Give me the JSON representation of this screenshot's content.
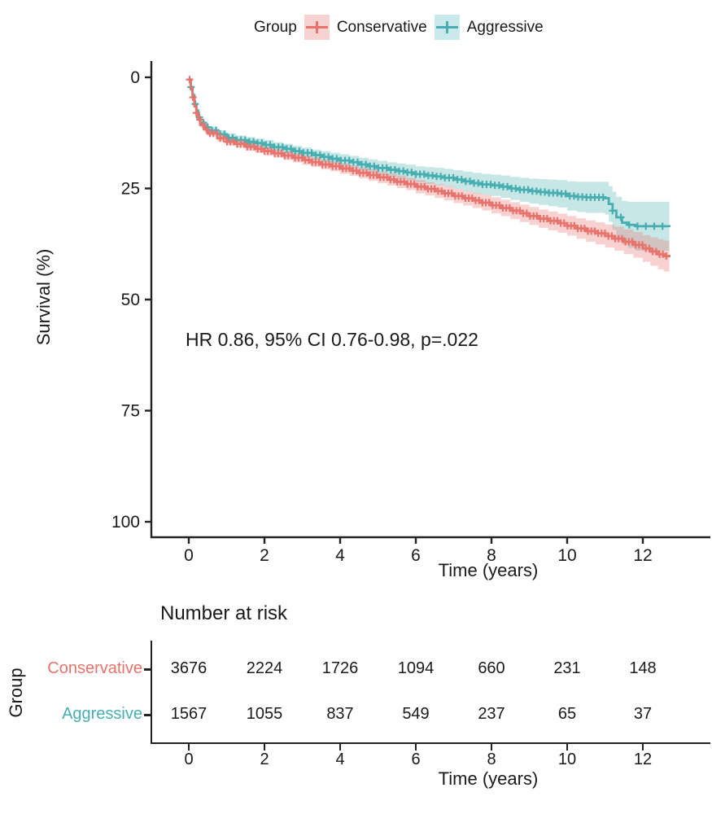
{
  "accent_colors": {
    "conservative": "#E8736C",
    "conservative_band": "rgba(232,115,108,0.32)",
    "conservative_key_fill": "#F6D2D0",
    "aggressive": "#47AEB1",
    "aggressive_band": "rgba(71,174,177,0.30)",
    "aggressive_key_fill": "#C9E9EA",
    "axis": "#222222"
  },
  "legend": {
    "title": "Group",
    "items": [
      {
        "label": "Conservative"
      },
      {
        "label": "Aggressive"
      }
    ]
  },
  "main_plot": {
    "ylabel": "Survival (%)",
    "xlabel": "Time (years)",
    "annotation": "HR 0.86, 95% CI 0.76-0.98, p=.022",
    "ytick_labels": [
      "100",
      "75",
      "50",
      "25",
      "0"
    ],
    "xtick_labels": [
      "0",
      "2",
      "4",
      "6",
      "8",
      "10",
      "12"
    ]
  },
  "risk_table": {
    "title": "Number at risk",
    "group_axis_label": "Group",
    "xlabel": "Time (years)",
    "xtick_labels": [
      "0",
      "2",
      "4",
      "6",
      "8",
      "10",
      "12"
    ],
    "rows": [
      {
        "label": "Conservative",
        "counts": [
          "3676",
          "2224",
          "1726",
          "1094",
          "660",
          "231",
          "148"
        ]
      },
      {
        "label": "Aggressive",
        "counts": [
          "1567",
          "1055",
          "837",
          "549",
          "237",
          "65",
          "37"
        ]
      }
    ]
  },
  "chart_data": {
    "type": "line",
    "subtype": "kaplan-meier-step",
    "title": "",
    "xlabel": "Time (years)",
    "ylabel": "Survival (%)",
    "xlim": [
      0,
      12.8
    ],
    "ylim": [
      0,
      100
    ],
    "xticks": [
      0,
      2,
      4,
      6,
      8,
      10,
      12
    ],
    "yticks": [
      0,
      25,
      50,
      75,
      100
    ],
    "grid": false,
    "legend_position": "top",
    "annotation": "HR 0.86, 95% CI 0.76-0.98, p=.022",
    "series": [
      {
        "name": "Aggressive",
        "color": "#47AEB1",
        "band_color": "rgba(71,174,177,0.30)",
        "points_t_surv_cihalf": [
          [
            0,
            99.5,
            0.5
          ],
          [
            0.05,
            97.8,
            0.6
          ],
          [
            0.1,
            96,
            0.6
          ],
          [
            0.15,
            94,
            0.6
          ],
          [
            0.2,
            92.5,
            0.7
          ],
          [
            0.25,
            91,
            0.7
          ],
          [
            0.3,
            89.8,
            0.7
          ],
          [
            0.4,
            88.8,
            0.8
          ],
          [
            0.5,
            88.1,
            0.8
          ],
          [
            0.75,
            87.2,
            0.9
          ],
          [
            1,
            86.4,
            1
          ],
          [
            1.25,
            85.9,
            1
          ],
          [
            1.5,
            85.5,
            1.05
          ],
          [
            1.75,
            85.2,
            1.05
          ],
          [
            2,
            84.8,
            1.1
          ],
          [
            2.25,
            84.3,
            1.1
          ],
          [
            2.5,
            83.9,
            1.15
          ],
          [
            2.75,
            83.4,
            1.2
          ],
          [
            3,
            83,
            1.2
          ],
          [
            3.25,
            82.5,
            1.25
          ],
          [
            3.5,
            82.1,
            1.3
          ],
          [
            3.75,
            81.7,
            1.35
          ],
          [
            4,
            81.3,
            1.4
          ],
          [
            4.25,
            80.9,
            1.45
          ],
          [
            4.5,
            80.4,
            1.5
          ],
          [
            4.75,
            80,
            1.55
          ],
          [
            5,
            79.6,
            1.6
          ],
          [
            5.25,
            79.2,
            1.65
          ],
          [
            5.5,
            78.9,
            1.7
          ],
          [
            5.75,
            78.6,
            1.75
          ],
          [
            6,
            78.2,
            1.8
          ],
          [
            6.25,
            77.9,
            1.9
          ],
          [
            6.5,
            77.7,
            1.95
          ],
          [
            6.75,
            77.4,
            2
          ],
          [
            7,
            77,
            2.1
          ],
          [
            7.25,
            76.6,
            2.2
          ],
          [
            7.5,
            76.2,
            2.3
          ],
          [
            7.75,
            75.9,
            2.35
          ],
          [
            8,
            75.7,
            2.4
          ],
          [
            8.25,
            75.4,
            2.5
          ],
          [
            8.5,
            75,
            2.6
          ],
          [
            8.75,
            74.7,
            2.7
          ],
          [
            9,
            74.4,
            2.8
          ],
          [
            9.25,
            74.2,
            2.9
          ],
          [
            9.5,
            74,
            3
          ],
          [
            9.75,
            73.8,
            3.1
          ],
          [
            10,
            73.3,
            3.3
          ],
          [
            10.25,
            73.1,
            3.4
          ],
          [
            10.5,
            73,
            3.5
          ],
          [
            11,
            72.8,
            3.7
          ],
          [
            11.1,
            71.5,
            4
          ],
          [
            11.2,
            70,
            4.3
          ],
          [
            11.3,
            68.5,
            4.6
          ],
          [
            11.45,
            67.3,
            4.9
          ],
          [
            11.6,
            66.8,
            5.2
          ],
          [
            11.8,
            66.5,
            5.5
          ],
          [
            12.7,
            66.3,
            6.2
          ]
        ],
        "censor_segments": [
          [
            0.06,
            0.11,
            11.0
          ],
          [
            11.2,
            0.22,
            12.6
          ]
        ]
      },
      {
        "name": "Conservative",
        "color": "#E8736C",
        "band_color": "rgba(232,115,108,0.32)",
        "points_t_surv_cihalf": [
          [
            0,
            99.5,
            0.4
          ],
          [
            0.05,
            97.5,
            0.5
          ],
          [
            0.1,
            95.5,
            0.5
          ],
          [
            0.15,
            93.5,
            0.5
          ],
          [
            0.2,
            92,
            0.5
          ],
          [
            0.25,
            90.5,
            0.5
          ],
          [
            0.3,
            89.3,
            0.6
          ],
          [
            0.4,
            88.3,
            0.6
          ],
          [
            0.5,
            87.4,
            0.6
          ],
          [
            0.75,
            86.3,
            0.7
          ],
          [
            1,
            85.5,
            0.8
          ],
          [
            1.25,
            85,
            0.8
          ],
          [
            1.5,
            84.4,
            0.9
          ],
          [
            1.75,
            83.9,
            0.9
          ],
          [
            2,
            83.4,
            1
          ],
          [
            2.25,
            82.9,
            1
          ],
          [
            2.5,
            82.4,
            1
          ],
          [
            2.75,
            81.9,
            1.05
          ],
          [
            3,
            81.4,
            1.1
          ],
          [
            3.25,
            80.9,
            1.1
          ],
          [
            3.5,
            80.4,
            1.15
          ],
          [
            3.75,
            80,
            1.15
          ],
          [
            4,
            79.5,
            1.2
          ],
          [
            4.25,
            79,
            1.2
          ],
          [
            4.5,
            78.5,
            1.25
          ],
          [
            4.75,
            78,
            1.3
          ],
          [
            5,
            77.5,
            1.3
          ],
          [
            5.25,
            77,
            1.35
          ],
          [
            5.5,
            76.5,
            1.4
          ],
          [
            5.75,
            76,
            1.4
          ],
          [
            6,
            75.4,
            1.5
          ],
          [
            6.25,
            74.9,
            1.5
          ],
          [
            6.5,
            74.4,
            1.55
          ],
          [
            6.75,
            73.9,
            1.6
          ],
          [
            7,
            73.3,
            1.6
          ],
          [
            7.25,
            72.8,
            1.65
          ],
          [
            7.5,
            72.3,
            1.7
          ],
          [
            7.75,
            71.8,
            1.75
          ],
          [
            8,
            71.2,
            1.8
          ],
          [
            8.25,
            70.6,
            1.85
          ],
          [
            8.5,
            70,
            1.9
          ],
          [
            8.75,
            69.4,
            1.95
          ],
          [
            9,
            68.8,
            2
          ],
          [
            9.25,
            68.2,
            2.05
          ],
          [
            9.5,
            67.7,
            2.1
          ],
          [
            9.75,
            67.2,
            2.15
          ],
          [
            10,
            66.6,
            2.2
          ],
          [
            10.25,
            66,
            2.3
          ],
          [
            10.5,
            65.4,
            2.4
          ],
          [
            10.75,
            64.9,
            2.5
          ],
          [
            11,
            64.3,
            2.6
          ],
          [
            11.25,
            63.7,
            2.7
          ],
          [
            11.5,
            63,
            2.8
          ],
          [
            11.75,
            62.3,
            2.9
          ],
          [
            12,
            61.5,
            3
          ],
          [
            12.2,
            60.8,
            3.2
          ],
          [
            12.4,
            60.2,
            3.4
          ],
          [
            12.55,
            59.8,
            3.5
          ],
          [
            12.7,
            59.5,
            3.6
          ]
        ],
        "censor_segments": [
          [
            0.02,
            0.09,
            12.65
          ]
        ]
      }
    ],
    "risk_table": {
      "title": "Number at risk",
      "times": [
        0,
        2,
        4,
        6,
        8,
        10,
        12
      ],
      "rows": [
        {
          "name": "Conservative",
          "counts": [
            3676,
            2224,
            1726,
            1094,
            660,
            231,
            148
          ]
        },
        {
          "name": "Aggressive",
          "counts": [
            1567,
            1055,
            837,
            549,
            237,
            65,
            37
          ]
        }
      ]
    }
  }
}
